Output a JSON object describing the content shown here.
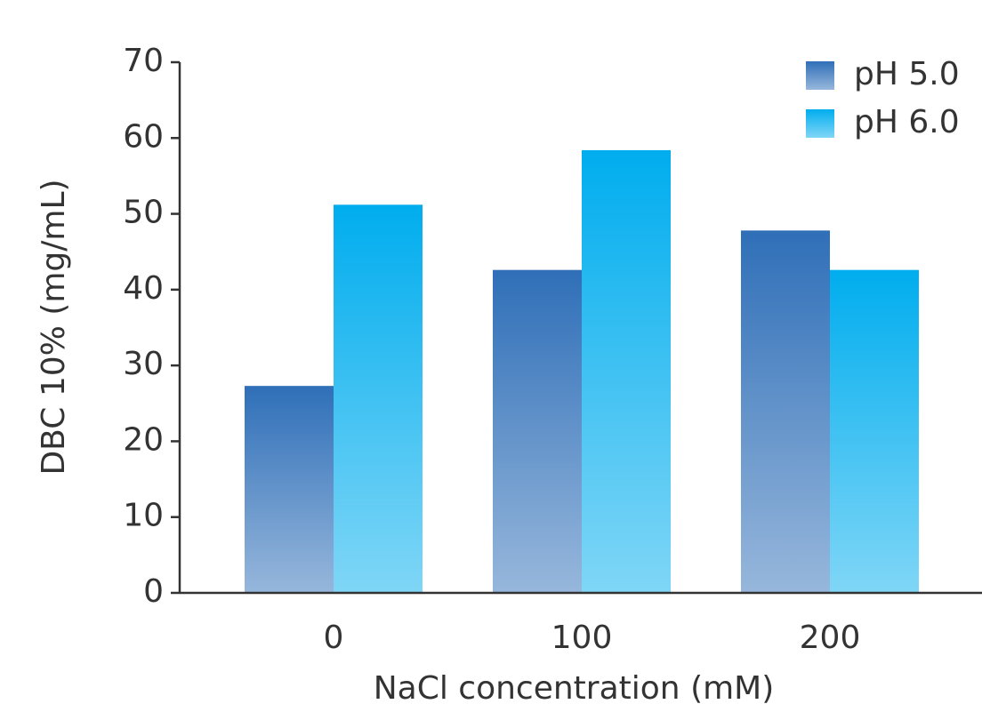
{
  "chart_data": {
    "type": "bar",
    "x_label": "NaCl concentration (mM)",
    "y_label": "DBC 10% (mg/mL)",
    "categories": [
      "0",
      "100",
      "200"
    ],
    "series": [
      {
        "name": "pH 5.0",
        "color": "#2f6fb8",
        "values": [
          27.3,
          42.6,
          47.8
        ]
      },
      {
        "name": "pH 6.0",
        "color": "#00adee",
        "values": [
          51.2,
          58.4,
          42.6
        ]
      }
    ],
    "ylim": [
      0,
      70
    ],
    "yticks": [
      0,
      10,
      20,
      30,
      40,
      50,
      60,
      70
    ],
    "legend": "top-right"
  }
}
